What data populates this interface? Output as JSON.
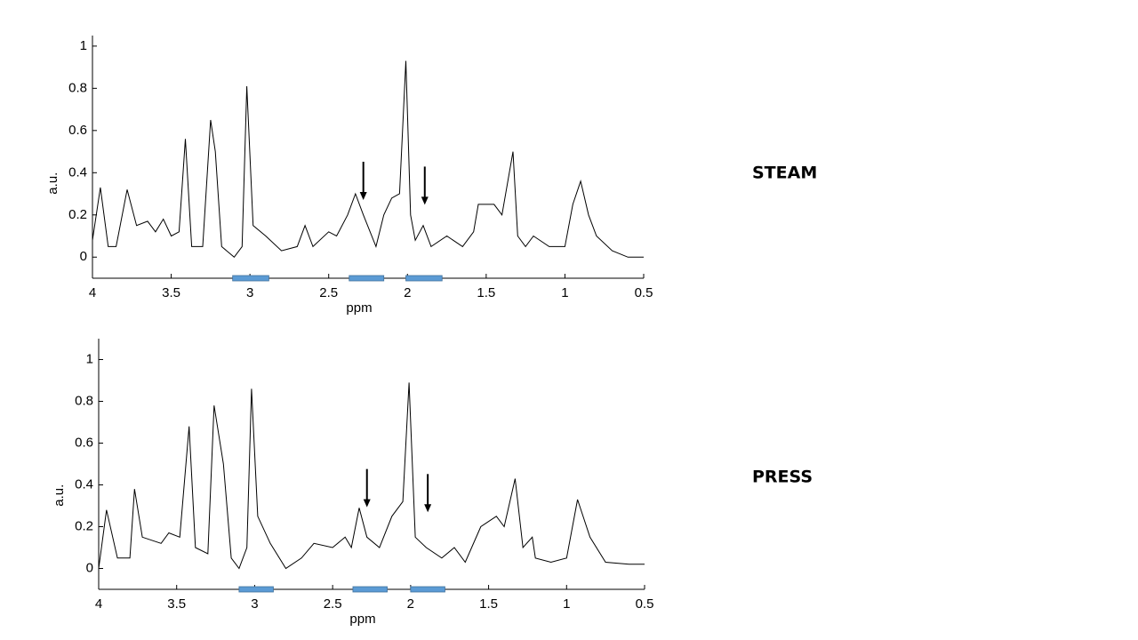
{
  "chart_data": [
    {
      "type": "line",
      "title": "STEAM",
      "xlabel": "ppm",
      "ylabel": "a.u.",
      "x": [
        4.0,
        3.95,
        3.9,
        3.85,
        3.78,
        3.72,
        3.65,
        3.6,
        3.55,
        3.5,
        3.45,
        3.41,
        3.37,
        3.3,
        3.25,
        3.22,
        3.18,
        3.1,
        3.05,
        3.02,
        2.98,
        2.9,
        2.8,
        2.7,
        2.65,
        2.6,
        2.5,
        2.45,
        2.38,
        2.33,
        2.28,
        2.2,
        2.15,
        2.1,
        2.05,
        2.01,
        1.98,
        1.95,
        1.9,
        1.85,
        1.75,
        1.65,
        1.58,
        1.55,
        1.45,
        1.4,
        1.33,
        1.3,
        1.25,
        1.2,
        1.1,
        1.0,
        0.95,
        0.9,
        0.85,
        0.8,
        0.7,
        0.6,
        0.5
      ],
      "series": [
        {
          "color": "#000000",
          "values": [
            0.08,
            0.33,
            0.05,
            0.05,
            0.32,
            0.15,
            0.17,
            0.12,
            0.18,
            0.1,
            0.12,
            0.56,
            0.05,
            0.05,
            0.65,
            0.5,
            0.05,
            0.0,
            0.05,
            0.81,
            0.15,
            0.1,
            0.03,
            0.05,
            0.15,
            0.05,
            0.12,
            0.1,
            0.2,
            0.3,
            0.2,
            0.05,
            0.2,
            0.28,
            0.3,
            0.93,
            0.2,
            0.08,
            0.15,
            0.05,
            0.1,
            0.05,
            0.12,
            0.25,
            0.25,
            0.2,
            0.5,
            0.1,
            0.05,
            0.1,
            0.05,
            0.05,
            0.25,
            0.36,
            0.2,
            0.1,
            0.03,
            0.0,
            0.0
          ]
        }
      ],
      "xlim": [
        4,
        0.5
      ],
      "xticks": [
        4,
        3.5,
        3,
        2.5,
        2,
        1.5,
        1,
        0.5
      ],
      "ylim": [
        -0.1,
        1.05
      ],
      "yticks": [
        0,
        0.2,
        0.4,
        0.6,
        0.8,
        1
      ],
      "regions": [
        [
          3.11,
          2.88
        ],
        [
          2.37,
          2.15
        ],
        [
          2.01,
          1.78
        ]
      ],
      "region_color": "#5b9bd5",
      "arrows": [
        2.28,
        1.89
      ]
    },
    {
      "type": "line",
      "title": "PRESS",
      "xlabel": "ppm",
      "ylabel": "a.u.",
      "x": [
        4.0,
        3.95,
        3.88,
        3.8,
        3.77,
        3.72,
        3.6,
        3.55,
        3.48,
        3.42,
        3.38,
        3.3,
        3.26,
        3.2,
        3.15,
        3.1,
        3.05,
        3.02,
        2.98,
        2.9,
        2.8,
        2.7,
        2.62,
        2.5,
        2.42,
        2.38,
        2.33,
        2.28,
        2.2,
        2.12,
        2.05,
        2.01,
        1.97,
        1.9,
        1.8,
        1.72,
        1.65,
        1.55,
        1.45,
        1.4,
        1.33,
        1.28,
        1.22,
        1.2,
        1.1,
        1.0,
        0.93,
        0.85,
        0.75,
        0.6,
        0.5
      ],
      "series": [
        {
          "color": "#000000",
          "values": [
            0.0,
            0.28,
            0.05,
            0.05,
            0.38,
            0.15,
            0.12,
            0.17,
            0.15,
            0.68,
            0.1,
            0.07,
            0.78,
            0.5,
            0.05,
            0.0,
            0.1,
            0.86,
            0.25,
            0.12,
            0.0,
            0.05,
            0.12,
            0.1,
            0.15,
            0.1,
            0.29,
            0.15,
            0.1,
            0.25,
            0.32,
            0.89,
            0.15,
            0.1,
            0.05,
            0.1,
            0.03,
            0.2,
            0.25,
            0.2,
            0.43,
            0.1,
            0.15,
            0.05,
            0.03,
            0.05,
            0.33,
            0.15,
            0.03,
            0.02,
            0.02
          ]
        }
      ],
      "xlim": [
        4,
        0.5
      ],
      "xticks": [
        4,
        3.5,
        3,
        2.5,
        2,
        1.5,
        1,
        0.5
      ],
      "ylim": [
        -0.1,
        1.1
      ],
      "yticks": [
        0,
        0.2,
        0.4,
        0.6,
        0.8,
        1
      ],
      "regions": [
        [
          3.1,
          2.88
        ],
        [
          2.37,
          2.15
        ],
        [
          2.0,
          1.78
        ]
      ],
      "region_color": "#5b9bd5",
      "arrows": [
        2.28,
        1.89
      ]
    }
  ]
}
